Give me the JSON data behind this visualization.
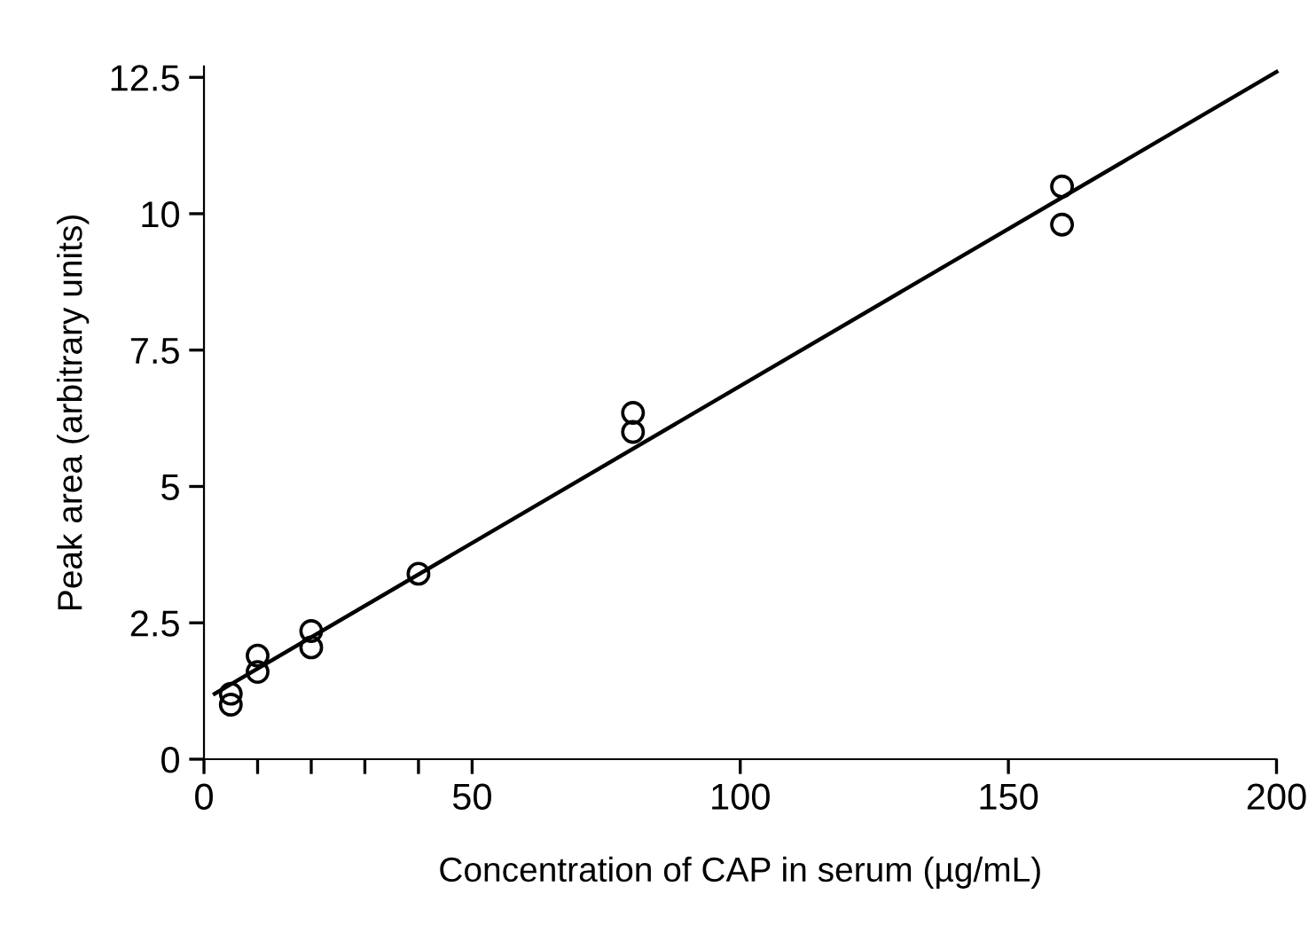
{
  "chart_data": {
    "type": "scatter",
    "xlabel": "Concentration of CAP in serum (µg/mL)",
    "ylabel": "Peak area (arbitrary units)",
    "series": [
      {
        "color": "#000000",
        "marker": "circle",
        "x": [
          5,
          5,
          10,
          10,
          20,
          20,
          40,
          80,
          80,
          160,
          160
        ],
        "values": [
          1.2,
          1.0,
          1.9,
          1.6,
          2.35,
          2.05,
          3.4,
          6.35,
          6.0,
          10.5,
          9.8
        ]
      },
      {
        "type": "line",
        "color": "#000000",
        "line_style": "solid",
        "x": [
          2,
          200
        ],
        "values": [
          1.2,
          12.6
        ]
      }
    ],
    "xlim": [
      0,
      200
    ],
    "xticks": [
      0,
      {
        "value": 10,
        "label": null
      },
      {
        "value": 20,
        "label": null
      },
      {
        "value": 30,
        "label": null
      },
      {
        "value": 40,
        "label": null
      },
      50,
      100,
      150,
      200
    ],
    "ylim": [
      0,
      12.7
    ],
    "yticks": [
      0,
      2.5,
      5,
      7.5,
      10,
      12.5
    ],
    "grid": false,
    "legend": false
  }
}
